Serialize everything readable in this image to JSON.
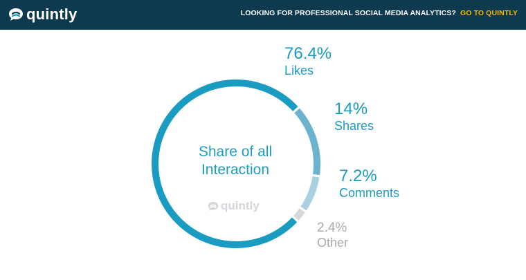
{
  "header": {
    "brand": "quintly",
    "promo_text": "LOOKING FOR PROFESSIONAL SOCIAL MEDIA ANALYTICS?",
    "promo_link": "GO TO QUINTLY",
    "colors": {
      "bar": "#0d3a4f",
      "link": "#f5b800"
    }
  },
  "chart_data": {
    "type": "pie",
    "center_label": [
      "Share of all",
      "Interaction"
    ],
    "watermark": "quintly",
    "categories": [
      "Likes",
      "Shares",
      "Comments",
      "Other"
    ],
    "values": [
      76.4,
      14,
      7.2,
      2.4
    ],
    "value_labels": [
      "76.4%",
      "14%",
      "7.2%",
      "2.4%"
    ],
    "colors": [
      "#1a9bc1",
      "#6bb3cf",
      "#a9d1e0",
      "#d5d9dc"
    ],
    "label_colors": [
      "#1a9bc1",
      "#1a9bc1",
      "#1a9bc1",
      "#a8acae"
    ]
  }
}
